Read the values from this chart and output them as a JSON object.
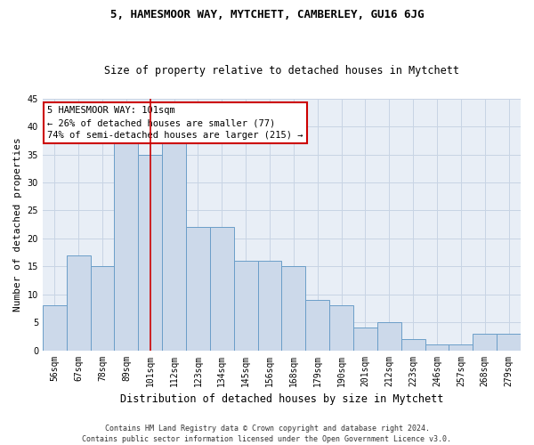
{
  "title1": "5, HAMESMOOR WAY, MYTCHETT, CAMBERLEY, GU16 6JG",
  "title2": "Size of property relative to detached houses in Mytchett",
  "xlabel": "Distribution of detached houses by size in Mytchett",
  "ylabel": "Number of detached properties",
  "categories": [
    "56sqm",
    "67sqm",
    "78sqm",
    "89sqm",
    "101sqm",
    "112sqm",
    "123sqm",
    "134sqm",
    "145sqm",
    "156sqm",
    "168sqm",
    "179sqm",
    "190sqm",
    "201sqm",
    "212sqm",
    "223sqm",
    "246sqm",
    "257sqm",
    "268sqm",
    "279sqm"
  ],
  "values": [
    8,
    17,
    15,
    37,
    35,
    37,
    22,
    22,
    16,
    16,
    15,
    9,
    8,
    4,
    5,
    2,
    1,
    1,
    3,
    3
  ],
  "bar_color": "#ccd9ea",
  "bar_edge_color": "#6b9ec8",
  "highlight_index": 4,
  "highlight_line_color": "#cc0000",
  "annotation_line1": "5 HAMESMOOR WAY: 101sqm",
  "annotation_line2": "← 26% of detached houses are smaller (77)",
  "annotation_line3": "74% of semi-detached houses are larger (215) →",
  "annotation_box_color": "#ffffff",
  "annotation_box_edge": "#cc0000",
  "footer1": "Contains HM Land Registry data © Crown copyright and database right 2024.",
  "footer2": "Contains public sector information licensed under the Open Government Licence v3.0.",
  "bg_color": "#ffffff",
  "plot_bg_color": "#e8eef6",
  "grid_color": "#c8d4e4",
  "ylim": [
    0,
    45
  ],
  "yticks": [
    0,
    5,
    10,
    15,
    20,
    25,
    30,
    35,
    40,
    45
  ],
  "title1_fontsize": 9,
  "title2_fontsize": 8.5,
  "ylabel_fontsize": 8,
  "xlabel_fontsize": 8.5,
  "tick_fontsize": 7,
  "footer_fontsize": 6,
  "ann_fontsize": 7.5
}
